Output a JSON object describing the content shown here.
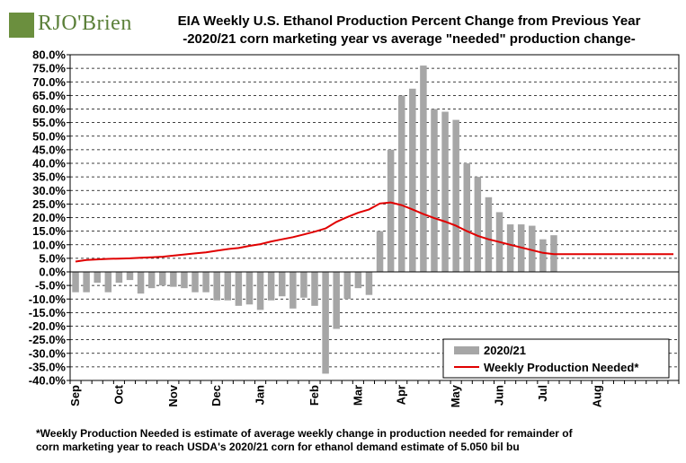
{
  "logo": {
    "text": "RJO'Brien"
  },
  "title": {
    "line1": "EIA Weekly U.S. Ethanol Production Percent Change from Previous Year",
    "line2": "-2020/21 corn marketing year vs average \"needed\" production change-"
  },
  "footnote": {
    "line1": "*Weekly Production Needed is estimate of average weekly change in production  needed for remainder of",
    "line2": "corn  marketing year to reach USDA's  2020/21  corn  for  ethanol demand estimate of 5.050  bil bu"
  },
  "colors": {
    "bar": "#a6a6a6",
    "line": "#e00000",
    "grid": "#000000"
  },
  "chart_data": {
    "type": "bar",
    "ylim": [
      -40,
      80
    ],
    "ytick_step": 5,
    "ytick_labels": [
      "80.0%",
      "75.0%",
      "70.0%",
      "65.0%",
      "60.0%",
      "55.0%",
      "50.0%",
      "45.0%",
      "40.0%",
      "35.0%",
      "30.0%",
      "25.0%",
      "20.0%",
      "15.0%",
      "10.0%",
      "5.0%",
      "0.0%",
      "-5.0%",
      "-10.0%",
      "-15.0%",
      "-20.0%",
      "-25.0%",
      "-30.0%",
      "-35.0%",
      "-40.0%"
    ],
    "grid": true,
    "legend_position": "bottom-right",
    "month_labels": [
      "Sep",
      "Oct",
      "Nov",
      "Dec",
      "Jan",
      "Feb",
      "Mar",
      "Apr",
      "May",
      "Jun",
      "Jul",
      "Aug"
    ],
    "month_week_index": [
      0,
      4,
      9,
      13,
      17,
      22,
      26,
      30,
      35,
      39,
      43,
      48
    ],
    "series": [
      {
        "name": "2020/21",
        "type": "bar",
        "values": [
          -7.5,
          -7.5,
          -4,
          -7.5,
          -4,
          -3,
          -8,
          -6,
          -5,
          -5.5,
          -6,
          -7.5,
          -7.5,
          -10.5,
          -10.5,
          -12.5,
          -12,
          -14,
          -10.5,
          -9,
          -13.5,
          -9.5,
          -12.5,
          -37.5,
          -21,
          -10,
          -6,
          -8.5,
          15,
          45,
          65,
          67.5,
          76,
          60,
          59,
          56,
          40,
          35,
          27.5,
          22,
          17.5,
          17.5,
          17,
          12,
          13.5
        ]
      },
      {
        "name": "Weekly Production Needed*",
        "type": "line",
        "values": [
          3.8,
          4.4,
          4.6,
          4.8,
          4.9,
          5.0,
          5.2,
          5.4,
          5.6,
          6.0,
          6.4,
          6.8,
          7.2,
          7.8,
          8.4,
          8.8,
          9.6,
          10.2,
          11.2,
          12.0,
          12.8,
          13.8,
          14.8,
          16.0,
          18.4,
          20.2,
          21.8,
          23.0,
          25.2,
          25.6,
          24.6,
          23.0,
          21.3,
          19.8,
          18.5,
          17.0,
          15.0,
          13.3,
          12.0,
          11.0,
          10.0,
          9.0,
          8.0,
          7.0,
          6.5,
          6.5,
          6.5,
          6.5,
          6.5,
          6.5,
          6.5,
          6.5,
          6.5,
          6.5,
          6.5,
          6.5
        ]
      }
    ]
  }
}
